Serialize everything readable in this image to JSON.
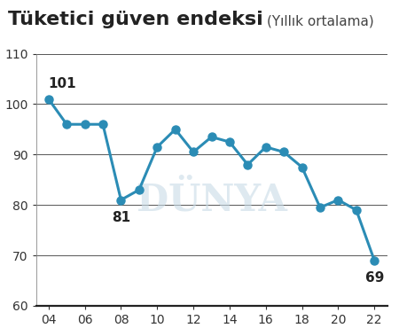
{
  "chart_data": {
    "type": "line",
    "title": "Tüketici güven endeksi",
    "subtitle": "(Yıllık ortalama)",
    "watermark": "DÜNYA",
    "x": [
      2004,
      2005,
      2006,
      2007,
      2008,
      2009,
      2010,
      2011,
      2012,
      2013,
      2014,
      2015,
      2016,
      2017,
      2018,
      2019,
      2020,
      2021,
      2022
    ],
    "values": [
      101,
      96,
      96,
      96,
      81,
      83,
      91.5,
      95,
      90.5,
      93.5,
      92.5,
      88,
      91.5,
      90.5,
      87.5,
      79.5,
      81,
      79,
      69
    ],
    "value_labels": [
      "101",
      null,
      null,
      null,
      "81",
      null,
      null,
      null,
      null,
      null,
      null,
      null,
      null,
      null,
      null,
      null,
      null,
      null,
      "69"
    ],
    "color": "#2b8cb5",
    "marker": "o",
    "line_style": "solid",
    "xlim": [
      2003.3,
      2022.7
    ],
    "xticks": [
      {
        "value": 2004,
        "label": "04"
      },
      {
        "value": 2006,
        "label": "06"
      },
      {
        "value": 2008,
        "label": "08"
      },
      {
        "value": 2010,
        "label": "10"
      },
      {
        "value": 2012,
        "label": "12"
      },
      {
        "value": 2014,
        "label": "14"
      },
      {
        "value": 2016,
        "label": "16"
      },
      {
        "value": 2018,
        "label": "18"
      },
      {
        "value": 2020,
        "label": "20"
      },
      {
        "value": 2022,
        "label": "22"
      }
    ],
    "ylim": [
      60,
      110
    ],
    "yticks": [
      60,
      70,
      80,
      90,
      100,
      110
    ],
    "grid": true
  }
}
